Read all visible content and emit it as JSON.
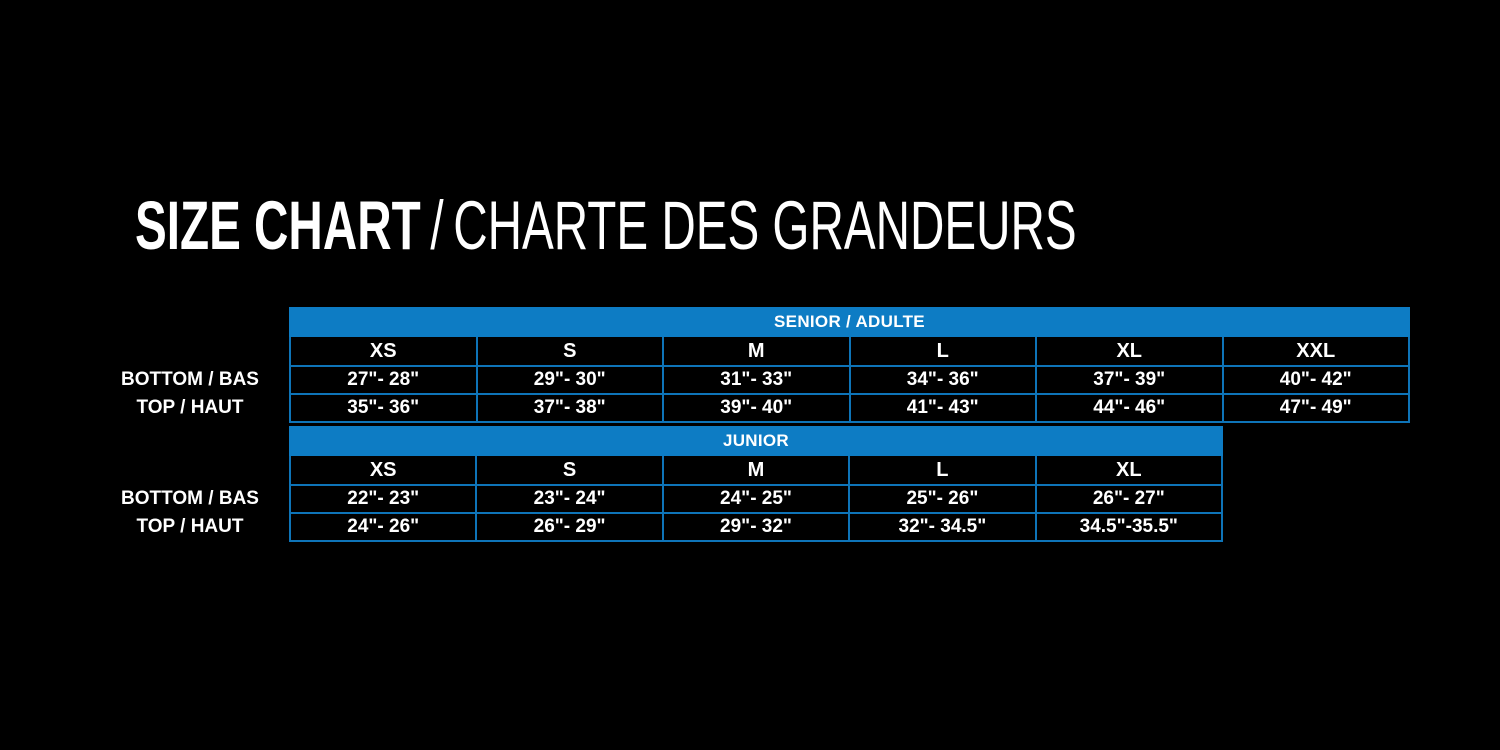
{
  "colors": {
    "background": "#000000",
    "band_blue": "#0d7cc4",
    "border_blue": "#0e74b8",
    "text": "#ffffff"
  },
  "title": {
    "en": "SIZE CHART",
    "separator": "/",
    "fr": "CHARTE DES GRANDEURS"
  },
  "chart_data": [
    {
      "type": "table",
      "title": "SENIOR / ADULTE",
      "columns": [
        "",
        "XS",
        "S",
        "M",
        "L",
        "XL",
        "XXL"
      ],
      "rows": [
        [
          "BOTTOM / BAS",
          "27\"- 28\"",
          "29\"- 30\"",
          "31\"- 33\"",
          "34\"- 36\"",
          "37\"- 39\"",
          "40\"- 42\""
        ],
        [
          "TOP / HAUT",
          "35\"- 36\"",
          "37\"- 38\"",
          "39\"- 40\"",
          "41\"- 43\"",
          "44\"- 46\"",
          "47\"- 49\""
        ]
      ]
    },
    {
      "type": "table",
      "title": "JUNIOR",
      "columns": [
        "",
        "XS",
        "S",
        "M",
        "L",
        "XL"
      ],
      "rows": [
        [
          "BOTTOM / BAS",
          "22\"- 23\"",
          "23\"- 24\"",
          "24\"- 25\"",
          "25\"- 26\"",
          "26\"- 27\""
        ],
        [
          "TOP / HAUT",
          "24\"- 26\"",
          "26\"- 29\"",
          "29\"- 32\"",
          "32\"- 34.5\"",
          "34.5\"-35.5\""
        ]
      ]
    }
  ]
}
